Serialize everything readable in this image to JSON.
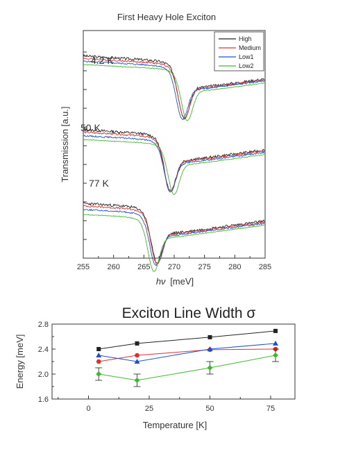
{
  "chart_data": [
    {
      "type": "line",
      "title": "First Heavy Hole Exciton",
      "xlabel_symbol": "hν",
      "xlabel_unit": "[meV]",
      "ylabel": "Transmission [a.u.]",
      "xlim": [
        255,
        285
      ],
      "x_ticks": [
        255,
        260,
        265,
        270,
        275,
        280,
        285
      ],
      "y_tick_labels": "none",
      "legend_position": "top-right",
      "series_names": [
        "High",
        "Medium",
        "Low1",
        "Low2"
      ],
      "series_colors": [
        "#222222",
        "#e0302c",
        "#1f4fd0",
        "#3fb92e"
      ],
      "groups": [
        {
          "label": "4.2 K",
          "offset": 50,
          "dip_x": [
            271.5,
            271.5,
            271.2,
            272.0
          ],
          "level": [
            1.1,
            1.05,
            1.0,
            0.93
          ],
          "depth": [
            1.0,
            0.98,
            0.97,
            0.95
          ]
        },
        {
          "label": "50 K",
          "offset": 25,
          "dip_x": [
            269.2,
            269.2,
            269.2,
            269.8
          ],
          "level": [
            1.1,
            1.05,
            0.98,
            0.9
          ],
          "depth": [
            1.0,
            0.98,
            0.95,
            0.95
          ]
        },
        {
          "label": "77 K",
          "offset": 0,
          "dip_x": [
            267.0,
            267.0,
            266.8,
            266.5
          ],
          "level": [
            1.1,
            1.05,
            0.98,
            0.88
          ],
          "depth": [
            0.98,
            0.98,
            0.95,
            1.05
          ]
        }
      ]
    },
    {
      "type": "scatter",
      "title": "Exciton Line Width σ",
      "xlabel": "Temperature [K]",
      "ylabel": "Energy [meV]",
      "xlim": [
        -15,
        85
      ],
      "ylim": [
        1.6,
        2.8
      ],
      "x_ticks": [
        0,
        25,
        50,
        75
      ],
      "y_ticks": [
        "1.6",
        "2.0",
        "2.4",
        "2.8"
      ],
      "x": [
        4.2,
        20,
        50,
        77
      ],
      "series": [
        {
          "name": "High",
          "color": "#222222",
          "marker": "square",
          "values": [
            2.4,
            2.49,
            2.59,
            2.69
          ]
        },
        {
          "name": "Medium",
          "color": "#e0302c",
          "marker": "circle",
          "values": [
            2.2,
            2.3,
            2.39,
            2.4
          ]
        },
        {
          "name": "Low1",
          "color": "#1f4fd0",
          "marker": "triangle",
          "values": [
            2.3,
            2.2,
            2.4,
            2.49
          ]
        },
        {
          "name": "Low2",
          "color": "#3fb92e",
          "marker": "diamond",
          "values": [
            2.0,
            1.9,
            2.1,
            2.3
          ],
          "error": [
            0.1,
            0.1,
            0.1,
            0.1
          ]
        }
      ]
    }
  ]
}
